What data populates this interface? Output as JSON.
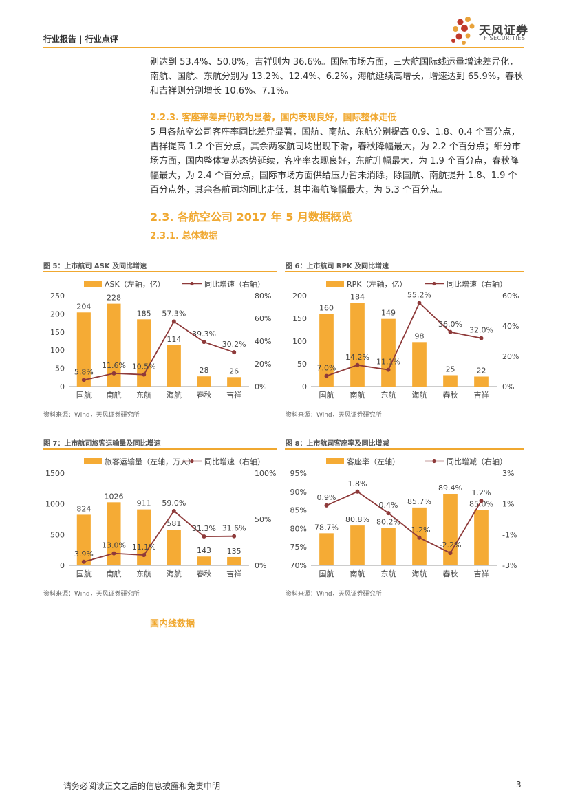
{
  "header": {
    "breadcrumb": "行业报告 | 行业点评",
    "logo_cn": "天风证券",
    "logo_en": "TF SECURITIES",
    "brand_color": "#f0a830"
  },
  "body": {
    "para1": "别达到 53.4%、50.8%，吉祥则为 36.6%。国际市场方面，三大航国际线运量增速差异化，南航、国航、东航分别为 13.2%、12.4%、6.2%，海航延续高增长，增速达到 65.9%，春秋和吉祥则分别增长 10.6%、7.1%。",
    "h223": "2.2.3. 客座率差异仍较为显著，国内表现良好，国际整体走低",
    "para2": "5 月各航空公司客座率同比差异显著，国航、南航、东航分别提高 0.9、1.8、0.4 个百分点，吉祥提高 1.2 个百分点，其余两家航司均出现下滑，春秋降幅最大，为 2.2 个百分点；细分市场方面，国内整体复苏态势延续，客座率表现良好，东航升幅最大，为 1.9 个百分点，春秋降幅最大，为 2.4 个百分点，国际市场方面供给压力暂未消除，除国航、南航提升 1.8、1.9 个百分点外，其余各航司均同比走低，其中海航降幅最大，为 5.3 个百分点。",
    "h23": "2.3. 各航空公司 2017 年 5 月数据概览",
    "h231": "2.3.1. 总体数据",
    "h_domestic": "国内线数据"
  },
  "figures": {
    "source_text": "资料来源：Wind，天风证券研究所",
    "fig5_title": "图 5：上市航司 ASK 及同比增速",
    "fig6_title": "图 6：上市航司 RPK 及同比增速",
    "fig7_title": "图 7：上市航司旅客运输量及同比增速",
    "fig8_title": "图 8：上市航司客座率及同比增减"
  },
  "chart_data": [
    {
      "id": "fig5",
      "type": "bar",
      "categories": [
        "国航",
        "南航",
        "东航",
        "海航",
        "春秋",
        "吉祥"
      ],
      "series": [
        {
          "name": "ASK（左轴，亿）",
          "kind": "bar",
          "axis": "left",
          "values": [
            204,
            228,
            185,
            114,
            28,
            26
          ],
          "labels": [
            "204",
            "228",
            "185",
            "114",
            "28",
            "26"
          ]
        },
        {
          "name": "同比增速（右轴）",
          "kind": "line",
          "axis": "right",
          "values": [
            5.8,
            11.6,
            10.5,
            57.3,
            39.3,
            30.2
          ],
          "labels": [
            "5.8%",
            "11.6%",
            "10.5%",
            "57.3%",
            "39.3%",
            "30.2%"
          ]
        }
      ],
      "left_axis": {
        "min": 0,
        "max": 250,
        "ticks": [
          "0",
          "50",
          "100",
          "150",
          "200",
          "250"
        ]
      },
      "right_axis": {
        "min": 0,
        "max": 80,
        "ticks": [
          "0%",
          "20%",
          "40%",
          "60%",
          "80%"
        ]
      }
    },
    {
      "id": "fig6",
      "type": "bar",
      "categories": [
        "国航",
        "南航",
        "东航",
        "海航",
        "春秋",
        "吉祥"
      ],
      "series": [
        {
          "name": "RPK（左轴，亿）",
          "kind": "bar",
          "axis": "left",
          "values": [
            160,
            184,
            149,
            98,
            25,
            22
          ],
          "labels": [
            "160",
            "184",
            "149",
            "98",
            "25",
            "22"
          ]
        },
        {
          "name": "同比增速（右轴）",
          "kind": "line",
          "axis": "right",
          "values": [
            7.0,
            14.2,
            11.1,
            55.2,
            36.0,
            32.0
          ],
          "labels": [
            "7.0%",
            "14.2%",
            "11.1%",
            "55.2%",
            "36.0%",
            "32.0%"
          ]
        }
      ],
      "left_axis": {
        "min": 0,
        "max": 200,
        "ticks": [
          "0",
          "50",
          "100",
          "150",
          "200"
        ]
      },
      "right_axis": {
        "min": 0,
        "max": 60,
        "ticks": [
          "0%",
          "20%",
          "40%",
          "60%"
        ]
      }
    },
    {
      "id": "fig7",
      "type": "bar",
      "categories": [
        "国航",
        "南航",
        "东航",
        "海航",
        "春秋",
        "吉祥"
      ],
      "series": [
        {
          "name": "旅客运输量（左轴，万人）",
          "kind": "bar",
          "axis": "left",
          "values": [
            824,
            1026,
            911,
            581,
            143,
            135
          ],
          "labels": [
            "824",
            "1026",
            "911",
            "581",
            "143",
            "135"
          ]
        },
        {
          "name": "同比增速（右轴）",
          "kind": "line",
          "axis": "right",
          "values": [
            3.9,
            13.0,
            11.1,
            59.0,
            31.3,
            31.6
          ],
          "labels": [
            "3.9%",
            "13.0%",
            "11.1%",
            "59.0%",
            "31.3%",
            "31.6%"
          ]
        }
      ],
      "left_axis": {
        "min": 0,
        "max": 1500,
        "ticks": [
          "0",
          "500",
          "1000",
          "1500"
        ]
      },
      "right_axis": {
        "min": 0,
        "max": 100,
        "ticks": [
          "0%",
          "50%",
          "100%"
        ]
      }
    },
    {
      "id": "fig8",
      "type": "bar",
      "categories": [
        "国航",
        "南航",
        "东航",
        "海航",
        "春秋",
        "吉祥"
      ],
      "series": [
        {
          "name": "客座率（左轴）",
          "kind": "bar",
          "axis": "left",
          "values": [
            78.7,
            80.8,
            80.2,
            85.7,
            89.4,
            85.0
          ],
          "labels": [
            "78.7%",
            "80.8%",
            "80.2%",
            "85.7%",
            "89.4%",
            "85.0%"
          ]
        },
        {
          "name": "同比增减（右轴）",
          "kind": "line",
          "axis": "right",
          "values": [
            0.9,
            1.8,
            0.4,
            -1.2,
            -2.2,
            1.2
          ],
          "labels": [
            "0.9%",
            "1.8%",
            "0.4%",
            "-1.2%",
            "-2.2%",
            "1.2%"
          ]
        }
      ],
      "left_axis": {
        "min": 70,
        "max": 95,
        "ticks": [
          "70%",
          "75%",
          "80%",
          "85%",
          "90%",
          "95%"
        ]
      },
      "right_axis": {
        "min": -3,
        "max": 3,
        "ticks": [
          "-3%",
          "-1%",
          "1%",
          "3%"
        ]
      }
    }
  ],
  "footer": {
    "disclaimer": "请务必阅读正文之后的信息披露和免责申明",
    "page": "3"
  }
}
